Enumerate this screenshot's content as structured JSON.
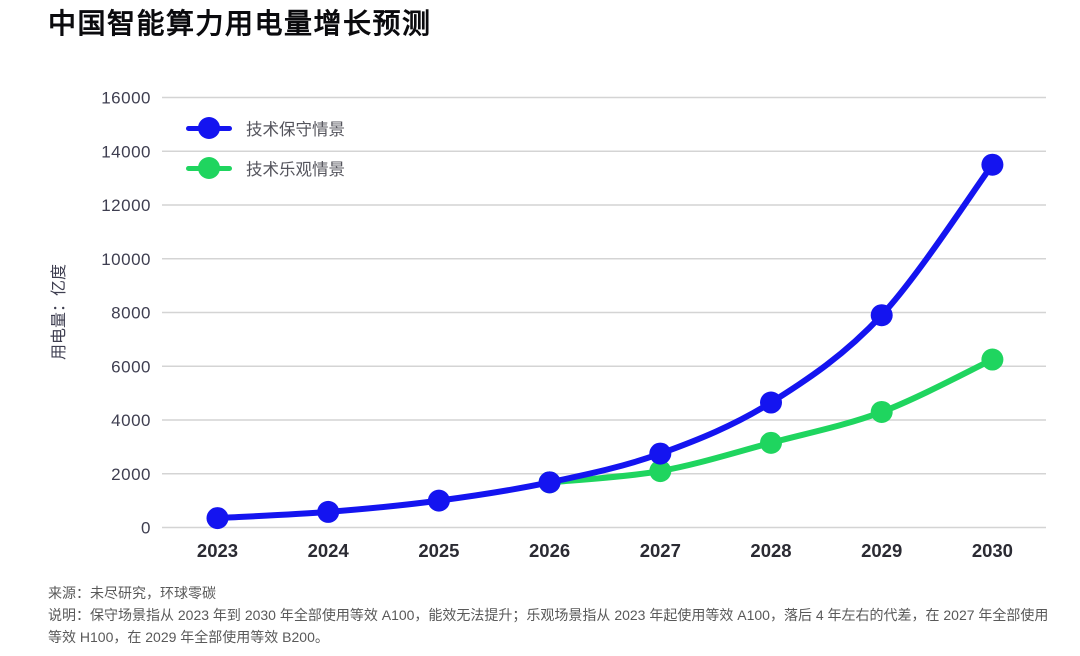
{
  "title": "中国智能算力用电量增长预测",
  "legend": {
    "items": [
      {
        "id": "conservative",
        "label": "技术保守情景",
        "color": "#1414f0"
      },
      {
        "id": "optimistic",
        "label": "技术乐观情景",
        "color": "#1fd55f"
      }
    ]
  },
  "footer": {
    "source_line": "来源：未尽研究，环球零碳",
    "note_line": "说明：保守场景指从 2023 年到 2030 年全部使用等效 A100，能效无法提升；乐观场景指从 2023 年起使用等效 A100，落后 4 年左右的代差，在 2027 年全部使用等效 H100，在 2029 年全部使用等效 B200。"
  },
  "chart_data": {
    "type": "line",
    "title": "中国智能算力用电量增长预测",
    "categories": [
      "2023",
      "2024",
      "2025",
      "2026",
      "2027",
      "2028",
      "2029",
      "2030"
    ],
    "series": [
      {
        "name": "技术保守情景",
        "color": "#1414f0",
        "values": [
          350,
          580,
          1000,
          1680,
          2750,
          4650,
          7900,
          13500
        ]
      },
      {
        "name": "技术乐观情景",
        "color": "#1fd55f",
        "values": [
          null,
          null,
          null,
          1680,
          2100,
          3150,
          4300,
          6250
        ]
      }
    ],
    "xlabel": "",
    "ylabel": "用电量：亿度",
    "ylim": [
      0,
      16000
    ],
    "ytick_step": 2000,
    "grid": true,
    "legend_position": "top-left",
    "colors": {
      "grid": "#d4d4d4",
      "ytick_label": "#3e3e50",
      "xtick_label": "#2b2b33",
      "axis_title": "#3e3e50"
    }
  }
}
